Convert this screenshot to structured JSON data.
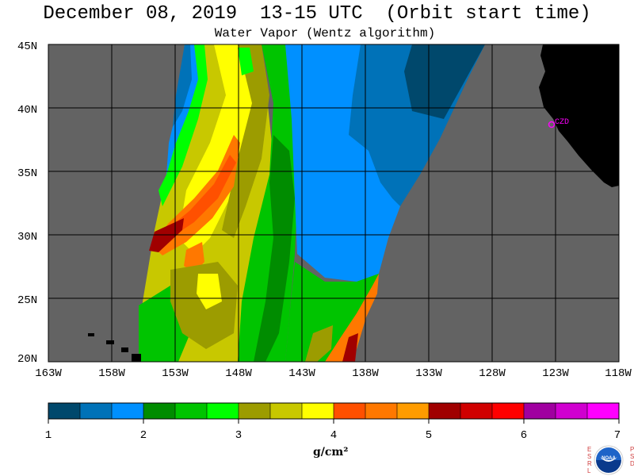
{
  "header": {
    "title": "December 08, 2019  13-15 UTC  (Orbit start time)",
    "subtitle": "Water Vapor (Wentz algorithm)"
  },
  "map": {
    "lat_labels": [
      "45N",
      "40N",
      "35N",
      "30N",
      "25N",
      "20N"
    ],
    "lon_labels": [
      "163W",
      "158W",
      "153W",
      "148W",
      "143W",
      "138W",
      "133W",
      "128W",
      "123W",
      "118W"
    ],
    "station_label": "CZD",
    "colors": {
      "no_data": "#636363",
      "land": "#000000",
      "grid": "#000000",
      "station": "#ff00ff"
    }
  },
  "colorbar": {
    "ticks": [
      "1",
      "2",
      "3",
      "4",
      "5",
      "6",
      "7"
    ],
    "unit_label": "g/cm²",
    "colors": [
      "#00486c",
      "#0072b8",
      "#0090ff",
      "#008c00",
      "#00c400",
      "#00ff00",
      "#9c9c00",
      "#c8c800",
      "#ffff00",
      "#ff5000",
      "#ff7800",
      "#ff9c00",
      "#a00000",
      "#d00000",
      "#ff0000",
      "#a000a0",
      "#d000d0",
      "#ff00ff"
    ]
  },
  "logos": {
    "esrl_left": "ESRL",
    "esrl_right": "PSD",
    "noaa": "NOAA"
  }
}
